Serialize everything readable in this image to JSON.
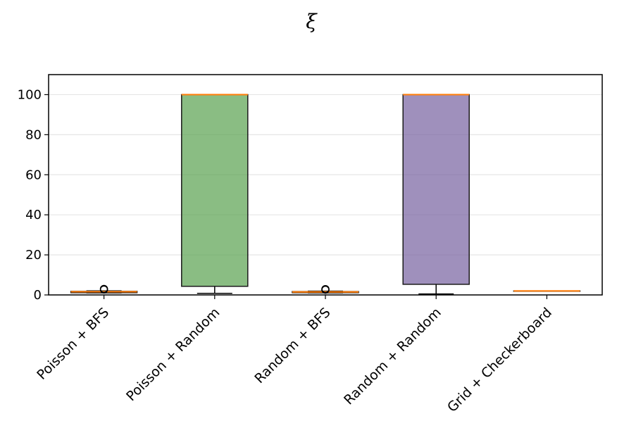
{
  "chart_data": {
    "type": "boxplot",
    "title": "ξ",
    "xlabel": "",
    "ylabel": "",
    "ylim": [
      0,
      110
    ],
    "yticks": [
      0,
      20,
      40,
      60,
      80,
      100
    ],
    "grid": "horizontal",
    "categories": [
      "Poisson + BFS",
      "Poisson + Random",
      "Random + BFS",
      "Random + Random",
      "Grid + Checkerboard"
    ],
    "boxes": [
      {
        "category": "Poisson + BFS",
        "whisker_low": 1.0,
        "q1": 1.1,
        "median": 1.6,
        "q3": 1.8,
        "whisker_high": 2.0,
        "outliers": [
          2.7,
          3.0
        ],
        "fill": "#f28e2b"
      },
      {
        "category": "Poisson + Random",
        "whisker_low": 0.8,
        "q1": 4.3,
        "median": 100,
        "q3": 100,
        "whisker_high": 100,
        "outliers": [],
        "fill": "#59a14f"
      },
      {
        "category": "Random + BFS",
        "whisker_low": 1.0,
        "q1": 1.1,
        "median": 1.5,
        "q3": 1.7,
        "whisker_high": 1.9,
        "outliers": [
          2.6,
          2.9
        ],
        "fill": "#f28e2b"
      },
      {
        "category": "Random + Random",
        "whisker_low": 0.5,
        "q1": 5.3,
        "median": 100,
        "q3": 100,
        "whisker_high": 100,
        "outliers": [],
        "fill": "#76619f"
      },
      {
        "category": "Grid + Checkerboard",
        "whisker_low": 2.0,
        "q1": 2.0,
        "median": 2.0,
        "q3": 2.0,
        "whisker_high": 2.0,
        "outliers": [],
        "fill": "#4e79a7"
      }
    ],
    "colors": {
      "median": "#ff7f0e",
      "box_edge": "#1a1a1a",
      "grid": "#e6e6e6"
    }
  }
}
